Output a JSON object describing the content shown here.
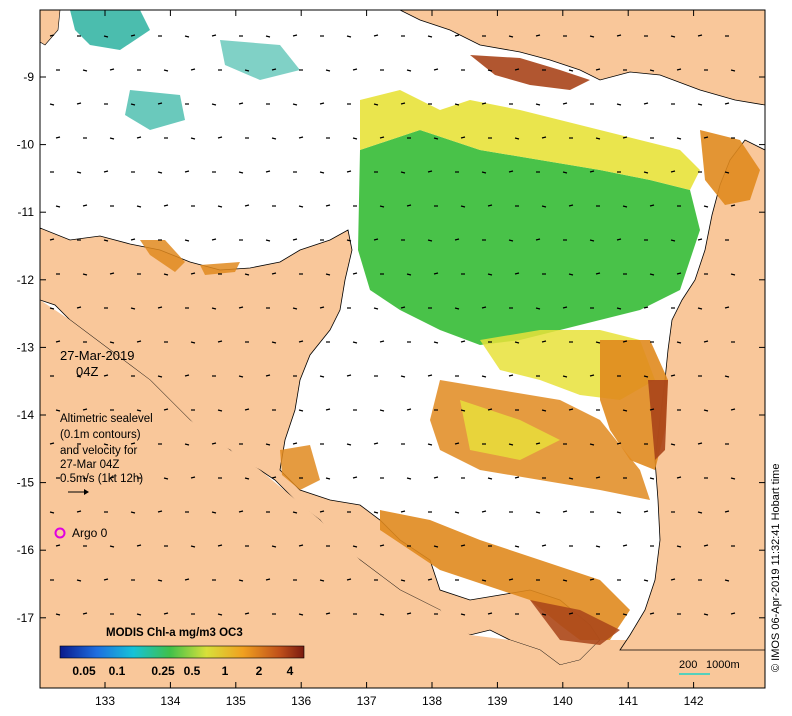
{
  "map": {
    "date_label": "27-Mar-2019",
    "time_label": "04Z",
    "legend_lines": [
      "Altimetric sealevel",
      "(0.1m contours)",
      "and velocity for",
      "27-Mar 04Z",
      "0.5m/s (1kt 12h)"
    ],
    "argo_label": "Argo 0",
    "colorbar_title": "MODIS Chl-a mg/m3 OC3",
    "colorbar_ticks": [
      "0.05",
      "0.1",
      "0.25",
      "0.5",
      "1",
      "2",
      "4"
    ],
    "scale_label": "200",
    "depth_label": "1000m",
    "credit": "© IMOS 06-Apr-2019 11:32:41 Hobart time",
    "y_ticks": [
      "-9",
      "-10",
      "-11",
      "-12",
      "-13",
      "-14",
      "-15",
      "-16",
      "-17"
    ],
    "x_ticks": [
      "133",
      "134",
      "135",
      "136",
      "137",
      "138",
      "139",
      "140",
      "141",
      "142"
    ],
    "colors": {
      "land": "#f9c79a",
      "ocean": "#ffffff",
      "coast": "#000000",
      "chl_green": "#3fbf3f",
      "chl_yellow": "#e8e23a",
      "chl_orange": "#e08a1e",
      "chl_brown": "#a8441a",
      "chl_teal": "#2bb2a0",
      "argo": "#e000e0",
      "scale_bar": "#1ed4c8"
    }
  }
}
